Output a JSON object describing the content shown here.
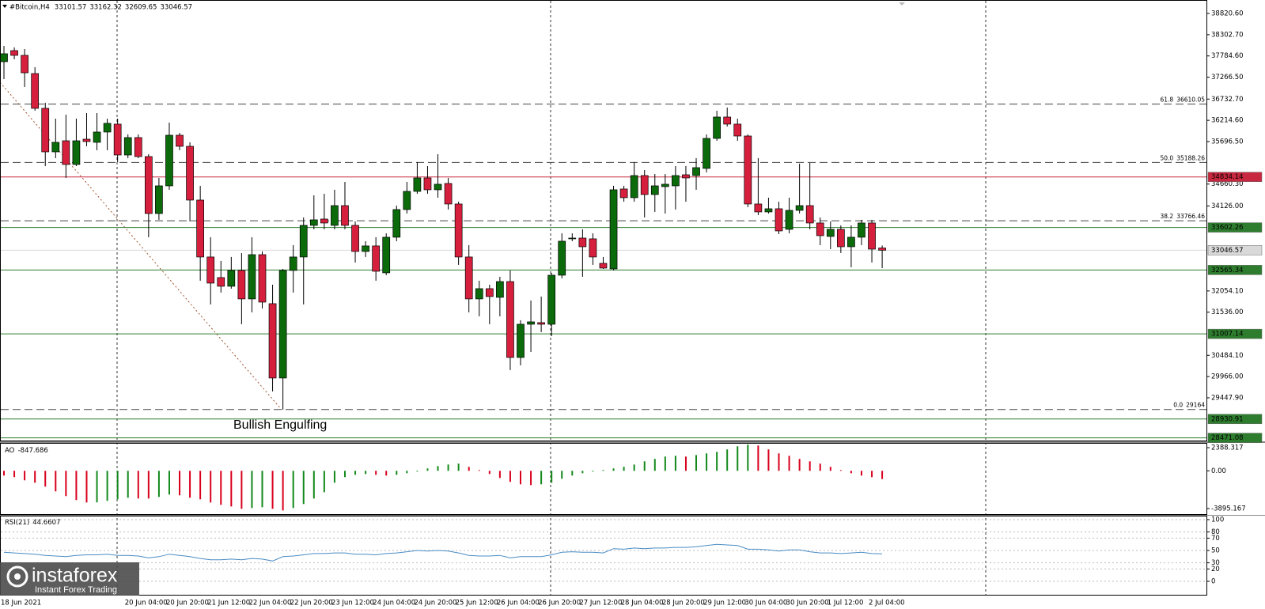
{
  "chart_data": [
    {
      "type": "candlestick",
      "title": "#Bitcoin,H4",
      "annotation": "Bullish Engulfing",
      "categories": [
        "18 Jun 2021",
        null,
        null,
        null,
        null,
        null,
        null,
        null,
        null,
        null,
        null,
        null,
        "20 Jun 04:00",
        null,
        null,
        null,
        "20 Jun 20:00",
        null,
        null,
        null,
        "21 Jun 12:00",
        null,
        null,
        null,
        "22 Jun 04:00",
        null,
        null,
        null,
        "22 Jun 20:00",
        null,
        null,
        null,
        "23 Jun 12:00",
        null,
        null,
        null,
        "24 Jun 04:00",
        null,
        null,
        null,
        "24 Jun 20:00",
        null,
        null,
        null,
        "25 Jun 12:00",
        null,
        null,
        null,
        "26 Jun 04:00",
        null,
        null,
        null,
        "26 Jun 20:00",
        null,
        null,
        null,
        "27 Jun 12:00",
        null,
        null,
        null,
        "28 Jun 04:00",
        null,
        null,
        null,
        "28 Jun 20:00",
        null,
        null,
        null,
        "29 Jun 12:00",
        null,
        null,
        null,
        "30 Jun 04:00",
        null,
        null,
        null,
        "30 Jun 20:00",
        null,
        null,
        null,
        "1 Jul 12:00",
        null,
        null,
        null,
        "2 Jul 04:00",
        null
      ],
      "open": [
        37645,
        37915,
        37799,
        37355,
        36507,
        35446,
        35716,
        35138,
        35755,
        35678,
        35929,
        36122,
        35369,
        35794,
        35331,
        33942,
        34617,
        35851,
        35581,
        34270,
        32882,
        32380,
        32168,
        32554,
        31860,
        32939,
        31744,
        29931,
        32554,
        32882,
        33653,
        33807,
        33653,
        34135,
        33653,
        33017,
        33152,
        32496,
        33364,
        34039,
        34482,
        34810,
        34521,
        34675,
        34174,
        32882,
        31860,
        32110,
        31898,
        32283,
        30432,
        31242,
        31281,
        31242,
        32438,
        33325,
        33344,
        33325,
        32727,
        32592,
        34540,
        34328,
        34868,
        34405,
        34598,
        34617,
        34887,
        34868,
        35042,
        35774,
        36295,
        36122,
        35832,
        34174,
        33981,
        34058,
        33556,
        34019,
        34135,
        33711,
        33383,
        33556,
        33132,
        33364,
        33711,
        33101.57
      ],
      "high": [
        38031,
        37992,
        37953,
        37510,
        36642,
        36256,
        36353,
        36256,
        36391,
        36391,
        36256,
        36256,
        35871,
        35871,
        35389,
        34810,
        36160,
        35909,
        35678,
        34617,
        33364,
        32785,
        32882,
        32978,
        33364,
        33017,
        32206,
        32592,
        33171,
        33846,
        34386,
        34424,
        34521,
        34713,
        33749,
        33267,
        33364,
        33460,
        34135,
        34713,
        35196,
        35099,
        35389,
        34810,
        34231,
        33171,
        32303,
        32206,
        32399,
        32554,
        31339,
        31821,
        31917,
        32496,
        33460,
        33460,
        33556,
        33460,
        32882,
        34617,
        34617,
        35196,
        35003,
        34906,
        34906,
        35099,
        35099,
        35292,
        35871,
        36449,
        36526,
        36256,
        35871,
        35292,
        34328,
        34231,
        34328,
        35157,
        35176,
        33846,
        33749,
        33653,
        33653,
        33788,
        33788,
        33162.32
      ],
      "low": [
        37220,
        37703,
        37028,
        36449,
        35099,
        35292,
        34810,
        35099,
        35581,
        35485,
        35485,
        35196,
        35292,
        35292,
        33364,
        33788,
        34521,
        35485,
        33749,
        32303,
        31725,
        32014,
        32110,
        31242,
        31532,
        31628,
        29604,
        29160,
        32014,
        31725,
        33556,
        33556,
        33556,
        33556,
        32747,
        32882,
        32303,
        32438,
        33267,
        33942,
        34424,
        34424,
        34328,
        34039,
        32689,
        31532,
        31435,
        31242,
        31435,
        30124,
        30239,
        30567,
        31049,
        30953,
        32361,
        33267,
        32399,
        32689,
        32592,
        32554,
        34231,
        34231,
        33846,
        33981,
        33942,
        34039,
        34231,
        34521,
        34945,
        35716,
        36063,
        35716,
        34096,
        33904,
        33942,
        33441,
        33460,
        33942,
        33556,
        33171,
        33074,
        32978,
        32631,
        33171,
        32747,
        32609.65
      ],
      "close": [
        37838,
        37799,
        37374,
        36507,
        35446,
        35678,
        35138,
        35716,
        35697,
        35929,
        36141,
        35369,
        35794,
        35331,
        33942,
        34617,
        35851,
        35581,
        34270,
        32882,
        32245,
        32168,
        32554,
        31860,
        32939,
        31782,
        29931,
        32554,
        32882,
        33653,
        33788,
        33711,
        34135,
        33653,
        33017,
        33152,
        32534,
        33364,
        34039,
        34482,
        34810,
        34521,
        34656,
        34174,
        32882,
        31860,
        32110,
        31917,
        32283,
        30432,
        31242,
        31300,
        31242,
        32438,
        33267,
        33344,
        33132,
        32882,
        32611,
        34521,
        34328,
        34868,
        34405,
        34617,
        34656,
        34868,
        34810,
        35061,
        35774,
        36295,
        36122,
        35832,
        34174,
        33981,
        34058,
        33518,
        34019,
        34135,
        33711,
        33402,
        33556,
        33132,
        33364,
        33711,
        33074,
        33046.57
      ],
      "up_color": "#0b6b0b",
      "down_color": "#d61f3d",
      "ylim": [
        28406,
        39091
      ],
      "yticks": [
        {
          "value": 38820.6,
          "label": "38820.60"
        },
        {
          "value": 38302.7,
          "label": "38302.70"
        },
        {
          "value": 37784.6,
          "label": "37784.60"
        },
        {
          "value": 37266.5,
          "label": "37266.50"
        },
        {
          "value": 36732.7,
          "label": "36732.70"
        },
        {
          "value": 36214.6,
          "label": "36214.60"
        },
        {
          "value": 35696.5,
          "label": "35696.50"
        },
        {
          "value": 34660.3,
          "label": "34660.30"
        },
        {
          "value": 34126,
          "label": "34126.00"
        },
        {
          "value": 32054.1,
          "label": "32054.10"
        },
        {
          "value": 31536,
          "label": "31536.00"
        },
        {
          "value": 30484.1,
          "label": "30484.10"
        },
        {
          "value": 29966,
          "label": "29966.00"
        },
        {
          "value": 29447.9,
          "label": "29447.90"
        }
      ],
      "levels": [
        {
          "value": 34834.14,
          "color": "#c8283f"
        },
        {
          "value": 33602.26,
          "color": "#2e7d2e"
        },
        {
          "value": 33046.57,
          "color": "#d9d9d9"
        },
        {
          "value": 32565.34,
          "color": "#2e7d2e"
        },
        {
          "value": 31007.14,
          "color": "#2e7d2e"
        },
        {
          "value": 28930.91,
          "color": "#2e7d2e"
        },
        {
          "value": 28471.08,
          "color": "#2e7d2e"
        }
      ],
      "fib_levels": [
        {
          "label": "61.8",
          "price": 36610.05
        },
        {
          "label": "50.0",
          "price": 35188.26
        },
        {
          "label": "38.2",
          "price": 33766.46
        },
        {
          "label": "0.0",
          "price": 29164
        }
      ]
    },
    {
      "type": "bar",
      "title": "AO",
      "values": [
        -490,
        -650,
        -980,
        -1230,
        -1630,
        -2120,
        -2610,
        -3020,
        -3270,
        -3260,
        -3100,
        -2940,
        -2780,
        -2860,
        -2860,
        -2700,
        -2450,
        -2530,
        -2780,
        -2940,
        -3270,
        -3510,
        -3680,
        -3920,
        -3840,
        -3760,
        -3920,
        -4090,
        -3840,
        -3430,
        -2860,
        -2210,
        -1230,
        -650,
        -410,
        -330,
        -410,
        -490,
        -410,
        -250,
        -80,
        250,
        490,
        650,
        740,
        410,
        80,
        -330,
        -740,
        -1140,
        -1390,
        -1470,
        -1390,
        -1230,
        -820,
        -490,
        -250,
        -80,
        80,
        250,
        410,
        650,
        980,
        1230,
        1470,
        1550,
        1470,
        1630,
        1800,
        1960,
        2210,
        2530,
        2700,
        2610,
        2210,
        1800,
        1550,
        1230,
        980,
        740,
        410,
        80,
        -250,
        -490,
        -650,
        -847.686
      ],
      "up_color": "#12891a",
      "down_color": "#d8001c",
      "ylim": [
        -4550,
        2800
      ],
      "yticks": [
        2388.317,
        {
          "value": 0,
          "label": "0.00"
        },
        -3895.167
      ]
    },
    {
      "type": "line",
      "title": "RSI(21)",
      "color": "#4a8cc4",
      "grid": true,
      "values": [
        47,
        46,
        45,
        44,
        42,
        41,
        40,
        42,
        43,
        43,
        44,
        42,
        42,
        41,
        38,
        40,
        44,
        42,
        40,
        37,
        35,
        35,
        36,
        35,
        37,
        36,
        33,
        40,
        41,
        43,
        45,
        45,
        46,
        46,
        44,
        44,
        43,
        45,
        46,
        48,
        50,
        49,
        50,
        49,
        46,
        42,
        41,
        41,
        42,
        38,
        40,
        40,
        40,
        43,
        47,
        48,
        47,
        47,
        46,
        53,
        52,
        54,
        53,
        54,
        54,
        55,
        55,
        56,
        58,
        60,
        59,
        58,
        52,
        52,
        51,
        49,
        51,
        51,
        48,
        46,
        46,
        45,
        46,
        47,
        45,
        44.6607
      ],
      "ylim": [
        0,
        100
      ],
      "yticks": [
        100,
        80,
        70,
        50,
        30,
        20,
        0
      ]
    }
  ],
  "watermark": {
    "brand": "instaforex",
    "tagline": "Instant Forex Trading"
  }
}
